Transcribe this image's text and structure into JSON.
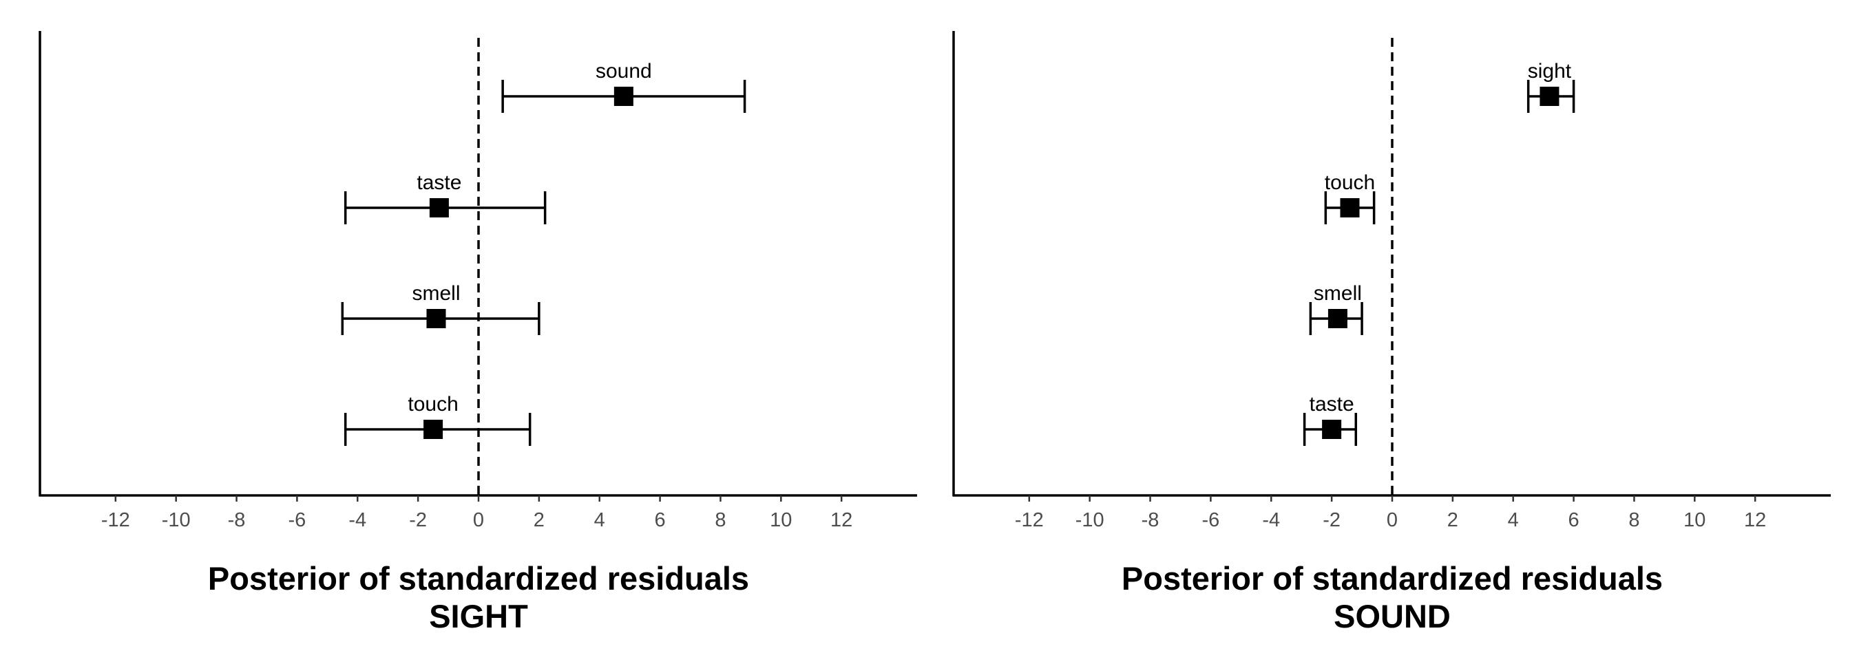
{
  "chart_data": [
    {
      "type": "forest",
      "title": "Posterior of standardized residuals",
      "subtitle": "SIGHT",
      "xlim": [
        -14.5,
        14.5
      ],
      "xticks": [
        -12,
        -10,
        -8,
        -6,
        -4,
        -2,
        0,
        2,
        4,
        6,
        8,
        10,
        12
      ],
      "xtick_labels": [
        "-12",
        "-10",
        "-8",
        "-6",
        "-4",
        "-2",
        "0",
        "2",
        "4",
        "6",
        "8",
        "10",
        "12"
      ],
      "reference_line": 0,
      "grid": false,
      "points": [
        {
          "label": "sound",
          "estimate": 4.8,
          "lower": 0.8,
          "upper": 8.8
        },
        {
          "label": "taste",
          "estimate": -1.3,
          "lower": -4.4,
          "upper": 2.2
        },
        {
          "label": "smell",
          "estimate": -1.4,
          "lower": -4.5,
          "upper": 2.0
        },
        {
          "label": "touch",
          "estimate": -1.5,
          "lower": -4.4,
          "upper": 1.7
        }
      ]
    },
    {
      "type": "forest",
      "title": "Posterior of standardized residuals",
      "subtitle": "SOUND",
      "xlim": [
        -14.5,
        14.5
      ],
      "xticks": [
        -12,
        -10,
        -8,
        -6,
        -4,
        -2,
        0,
        2,
        4,
        6,
        8,
        10,
        12
      ],
      "xtick_labels": [
        "-12",
        "-10",
        "-8",
        "-6",
        "-4",
        "-2",
        "0",
        "2",
        "4",
        "6",
        "8",
        "10",
        "12"
      ],
      "reference_line": 0,
      "grid": false,
      "points": [
        {
          "label": "sight",
          "estimate": 5.2,
          "lower": 4.5,
          "upper": 6.0
        },
        {
          "label": "touch",
          "estimate": -1.4,
          "lower": -2.2,
          "upper": -0.6
        },
        {
          "label": "smell",
          "estimate": -1.8,
          "lower": -2.7,
          "upper": -1.0
        },
        {
          "label": "taste",
          "estimate": -2.0,
          "lower": -2.9,
          "upper": -1.2
        }
      ]
    }
  ]
}
